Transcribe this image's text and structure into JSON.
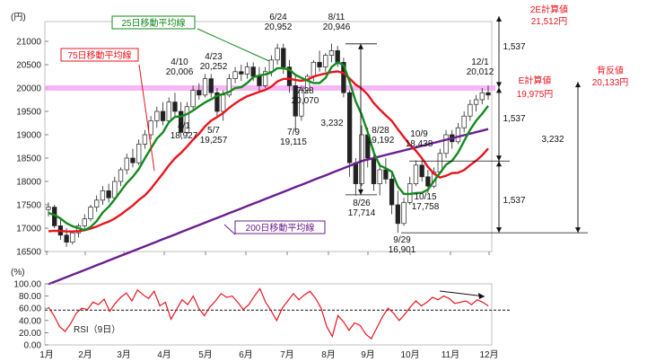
{
  "chart_data": [
    {
      "type": "candlestick",
      "unit_label": "(円)",
      "ylim": [
        16500,
        21000
      ],
      "y_ticks": [
        "21000",
        "20500",
        "20000",
        "19500",
        "19000",
        "18500",
        "18000",
        "17500",
        "17000",
        "16500"
      ],
      "x_ticks": [
        "1月",
        "2月",
        "3月",
        "4月",
        "5月",
        "6月",
        "7月",
        "8月",
        "9月",
        "10月",
        "11月",
        "12月"
      ],
      "moving_averages": [
        {
          "name": "25日移動平均線",
          "color": "#138a1e"
        },
        {
          "name": "75日移動平均線",
          "color": "#e8141e"
        },
        {
          "name": "200日移動平均線",
          "color": "#6b1f8f"
        }
      ],
      "price_annotations": [
        {
          "date": "4/1",
          "value": "18,927"
        },
        {
          "date": "4/10",
          "value": "20,006"
        },
        {
          "date": "4/23",
          "value": "20,252"
        },
        {
          "date": "5/7",
          "value": "19,257"
        },
        {
          "date": "6/24",
          "value": "20,952"
        },
        {
          "date": "7/9",
          "value": "19,115"
        },
        {
          "date": "7/28",
          "value": "20,070"
        },
        {
          "date": "8/11",
          "value": "20,946"
        },
        {
          "date": "8/26",
          "value": "17,714"
        },
        {
          "date": "8/28",
          "value": "19,192"
        },
        {
          "date": "9/29",
          "value": "16,901"
        },
        {
          "date": "10/9",
          "value": "18,438"
        },
        {
          "date": "10/15",
          "value": "17,758"
        },
        {
          "date": "12/1",
          "value": "20,012"
        }
      ],
      "range_labels": {
        "span_a": "1,537",
        "span_b": "3,232",
        "span_c": "1,537",
        "span_d": "1,537",
        "span_e": "1,537",
        "span_f": "3,232"
      },
      "targets": [
        {
          "label": "2E計算値",
          "value": "21,512円"
        },
        {
          "label": "E計算値",
          "value": "19,975円"
        },
        {
          "label": "背反値",
          "value": "20,133円"
        }
      ],
      "highlight_level": 20000,
      "highlight_color": "#f3a6f3",
      "candles_daily_estimate": [
        {
          "x": 1,
          "o": 17400,
          "h": 17550,
          "l": 17250,
          "c": 17450
        },
        {
          "x": 2,
          "o": 17450,
          "h": 17500,
          "l": 17000,
          "c": 17050
        },
        {
          "x": 3,
          "o": 17050,
          "h": 17200,
          "l": 16750,
          "c": 16850
        },
        {
          "x": 4,
          "o": 16850,
          "h": 17000,
          "l": 16600,
          "c": 16700
        },
        {
          "x": 5,
          "o": 16700,
          "h": 16950,
          "l": 16650,
          "c": 16900
        },
        {
          "x": 6,
          "o": 16900,
          "h": 17100,
          "l": 16800,
          "c": 17050
        },
        {
          "x": 7,
          "o": 17050,
          "h": 17300,
          "l": 16950,
          "c": 17200
        },
        {
          "x": 8,
          "o": 17200,
          "h": 17500,
          "l": 17150,
          "c": 17450
        },
        {
          "x": 9,
          "o": 17450,
          "h": 17700,
          "l": 17350,
          "c": 17600
        },
        {
          "x": 10,
          "o": 17600,
          "h": 17900,
          "l": 17500,
          "c": 17800
        },
        {
          "x": 11,
          "o": 17800,
          "h": 17950,
          "l": 17550,
          "c": 17650
        },
        {
          "x": 12,
          "o": 17650,
          "h": 18100,
          "l": 17600,
          "c": 18000
        },
        {
          "x": 13,
          "o": 18000,
          "h": 18300,
          "l": 17900,
          "c": 18250
        },
        {
          "x": 14,
          "o": 18250,
          "h": 18600,
          "l": 18150,
          "c": 18500
        },
        {
          "x": 15,
          "o": 18500,
          "h": 18700,
          "l": 18300,
          "c": 18400
        },
        {
          "x": 16,
          "o": 18400,
          "h": 18900,
          "l": 18350,
          "c": 18800
        },
        {
          "x": 17,
          "o": 18800,
          "h": 19100,
          "l": 18700,
          "c": 19000
        },
        {
          "x": 18,
          "o": 19000,
          "h": 19400,
          "l": 18900,
          "c": 19300
        },
        {
          "x": 19,
          "o": 19300,
          "h": 19600,
          "l": 19150,
          "c": 19500
        },
        {
          "x": 20,
          "o": 19500,
          "h": 19700,
          "l": 19200,
          "c": 19300
        },
        {
          "x": 21,
          "o": 19300,
          "h": 19800,
          "l": 19250,
          "c": 19700
        },
        {
          "x": 22,
          "o": 19700,
          "h": 19900,
          "l": 19400,
          "c": 19500
        },
        {
          "x": 23,
          "o": 19500,
          "h": 19700,
          "l": 18950,
          "c": 19050
        },
        {
          "x": 24,
          "o": 19050,
          "h": 19700,
          "l": 19000,
          "c": 19600
        },
        {
          "x": 25,
          "o": 19600,
          "h": 20050,
          "l": 19550,
          "c": 19950
        },
        {
          "x": 26,
          "o": 19950,
          "h": 20100,
          "l": 19750,
          "c": 19850
        },
        {
          "x": 27,
          "o": 19850,
          "h": 20300,
          "l": 19800,
          "c": 20200
        },
        {
          "x": 28,
          "o": 20200,
          "h": 20300,
          "l": 19800,
          "c": 19900
        },
        {
          "x": 29,
          "o": 19900,
          "h": 20000,
          "l": 19400,
          "c": 19500
        },
        {
          "x": 30,
          "o": 19500,
          "h": 19950,
          "l": 19300,
          "c": 19850
        },
        {
          "x": 31,
          "o": 19850,
          "h": 20300,
          "l": 19800,
          "c": 20200
        },
        {
          "x": 32,
          "o": 20200,
          "h": 20450,
          "l": 20100,
          "c": 20350
        },
        {
          "x": 33,
          "o": 20350,
          "h": 20500,
          "l": 20150,
          "c": 20300
        },
        {
          "x": 34,
          "o": 20300,
          "h": 20550,
          "l": 20200,
          "c": 20450
        },
        {
          "x": 35,
          "o": 20450,
          "h": 20550,
          "l": 20150,
          "c": 20250
        },
        {
          "x": 36,
          "o": 20250,
          "h": 20450,
          "l": 19900,
          "c": 20050
        },
        {
          "x": 37,
          "o": 20050,
          "h": 20450,
          "l": 20000,
          "c": 20350
        },
        {
          "x": 38,
          "o": 20350,
          "h": 20700,
          "l": 20250,
          "c": 20600
        },
        {
          "x": 39,
          "o": 20600,
          "h": 20950,
          "l": 20500,
          "c": 20850
        },
        {
          "x": 40,
          "o": 20850,
          "h": 20950,
          "l": 20300,
          "c": 20450
        },
        {
          "x": 41,
          "o": 20450,
          "h": 20600,
          "l": 19900,
          "c": 20050
        },
        {
          "x": 42,
          "o": 20050,
          "h": 20300,
          "l": 19100,
          "c": 19400
        },
        {
          "x": 43,
          "o": 19400,
          "h": 20050,
          "l": 19300,
          "c": 19950
        },
        {
          "x": 44,
          "o": 19950,
          "h": 20300,
          "l": 19900,
          "c": 20250
        },
        {
          "x": 45,
          "o": 20250,
          "h": 20600,
          "l": 20150,
          "c": 20550
        },
        {
          "x": 46,
          "o": 20550,
          "h": 20800,
          "l": 20350,
          "c": 20450
        },
        {
          "x": 47,
          "o": 20450,
          "h": 20750,
          "l": 20350,
          "c": 20700
        },
        {
          "x": 48,
          "o": 20700,
          "h": 20950,
          "l": 20550,
          "c": 20800
        },
        {
          "x": 49,
          "o": 20800,
          "h": 20900,
          "l": 20450,
          "c": 20550
        },
        {
          "x": 50,
          "o": 20550,
          "h": 20650,
          "l": 19800,
          "c": 19900
        },
        {
          "x": 51,
          "o": 19900,
          "h": 19950,
          "l": 18100,
          "c": 18400
        },
        {
          "x": 52,
          "o": 18400,
          "h": 18500,
          "l": 17700,
          "c": 17950
        },
        {
          "x": 53,
          "o": 17950,
          "h": 19200,
          "l": 17900,
          "c": 19000
        },
        {
          "x": 54,
          "o": 19000,
          "h": 19150,
          "l": 18300,
          "c": 18500
        },
        {
          "x": 55,
          "o": 18500,
          "h": 18700,
          "l": 17800,
          "c": 17950
        },
        {
          "x": 56,
          "o": 17950,
          "h": 18400,
          "l": 17700,
          "c": 18250
        },
        {
          "x": 57,
          "o": 18250,
          "h": 18500,
          "l": 17950,
          "c": 18050
        },
        {
          "x": 58,
          "o": 18050,
          "h": 18200,
          "l": 17300,
          "c": 17500
        },
        {
          "x": 59,
          "o": 17500,
          "h": 17800,
          "l": 16900,
          "c": 17100
        },
        {
          "x": 60,
          "o": 17100,
          "h": 17650,
          "l": 17050,
          "c": 17550
        },
        {
          "x": 61,
          "o": 17550,
          "h": 18100,
          "l": 17500,
          "c": 17950
        },
        {
          "x": 62,
          "o": 17950,
          "h": 18450,
          "l": 17900,
          "c": 18350
        },
        {
          "x": 63,
          "o": 18350,
          "h": 18450,
          "l": 18000,
          "c": 18100
        },
        {
          "x": 64,
          "o": 18100,
          "h": 18250,
          "l": 17750,
          "c": 17900
        },
        {
          "x": 65,
          "o": 17900,
          "h": 18300,
          "l": 17850,
          "c": 18200
        },
        {
          "x": 66,
          "o": 18200,
          "h": 18700,
          "l": 18150,
          "c": 18600
        },
        {
          "x": 67,
          "o": 18600,
          "h": 19100,
          "l": 18500,
          "c": 19000
        },
        {
          "x": 68,
          "o": 19000,
          "h": 19100,
          "l": 18700,
          "c": 18850
        },
        {
          "x": 69,
          "o": 18850,
          "h": 19250,
          "l": 18800,
          "c": 19150
        },
        {
          "x": 70,
          "o": 19150,
          "h": 19500,
          "l": 19050,
          "c": 19400
        },
        {
          "x": 71,
          "o": 19400,
          "h": 19750,
          "l": 19300,
          "c": 19650
        },
        {
          "x": 72,
          "o": 19650,
          "h": 19850,
          "l": 19500,
          "c": 19750
        },
        {
          "x": 73,
          "o": 19750,
          "h": 20000,
          "l": 19650,
          "c": 19900
        },
        {
          "x": 74,
          "o": 19900,
          "h": 20050,
          "l": 19750,
          "c": 19850
        }
      ]
    },
    {
      "type": "line",
      "unit_label": "(%)",
      "series_label": "RSI（9日）",
      "ylim": [
        0,
        100
      ],
      "y_ticks": [
        "100.00",
        "80.00",
        "60.00",
        "40.00",
        "20.00",
        "0.00"
      ],
      "reference_level": 57,
      "values": [
        62,
        48,
        30,
        22,
        35,
        52,
        60,
        58,
        70,
        66,
        75,
        55,
        68,
        78,
        85,
        72,
        90,
        82,
        76,
        88,
        64,
        70,
        42,
        58,
        74,
        66,
        80,
        60,
        48,
        62,
        72,
        84,
        78,
        80,
        70,
        58,
        66,
        80,
        92,
        70,
        56,
        40,
        60,
        72,
        84,
        74,
        82,
        88,
        76,
        60,
        30,
        14,
        48,
        38,
        24,
        36,
        32,
        18,
        10,
        28,
        46,
        60,
        52,
        40,
        50,
        62,
        72,
        64,
        70,
        78,
        74,
        80,
        76,
        68,
        70,
        72,
        66,
        74,
        70,
        64
      ]
    }
  ]
}
